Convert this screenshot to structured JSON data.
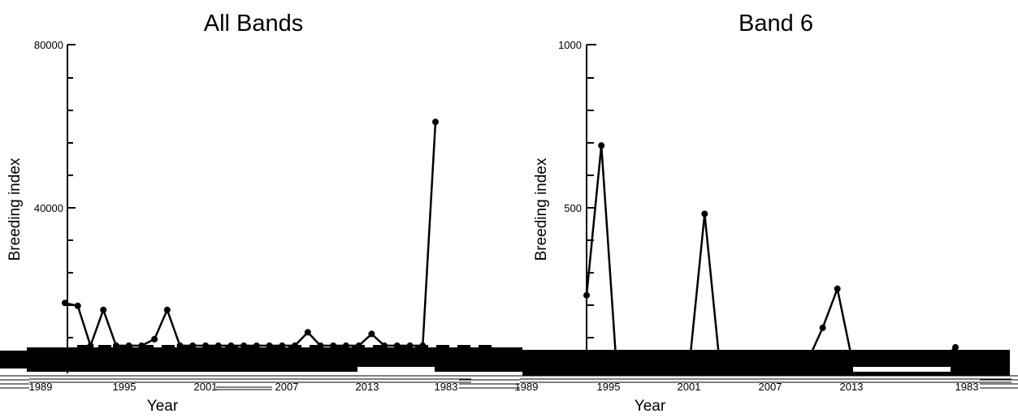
{
  "chart_data": [
    {
      "type": "line",
      "title": "All Bands",
      "xlabel": "Year",
      "ylabel": "Breeding index",
      "ylim": [
        0,
        80000
      ],
      "y_ticks": [
        "80000",
        "40000"
      ],
      "x_ticks": [
        "1989",
        "1995",
        "2001",
        "2007",
        "2013",
        "1983"
      ],
      "series": [
        {
          "x": [
            1989,
            1990,
            1991,
            1992,
            1993,
            1994,
            1995,
            1996,
            1997,
            1998,
            1999,
            2000,
            2001,
            2002,
            2003,
            2004,
            2005,
            2006,
            2007,
            2008,
            2009,
            2010,
            2011,
            2012,
            2013,
            2014,
            2015,
            2016,
            2017,
            2018
          ],
          "values": [
            16500,
            15800,
            6000,
            14800,
            6000,
            6000,
            6000,
            7600,
            14800,
            6000,
            6000,
            6000,
            6000,
            6000,
            6000,
            6000,
            6000,
            6000,
            6000,
            9300,
            6000,
            6000,
            6000,
            6000,
            8900,
            6000,
            6000,
            6000,
            6000,
            61000
          ]
        }
      ]
    },
    {
      "type": "line",
      "title": "Band 6",
      "xlabel": "Year",
      "ylabel": "Breeding index",
      "ylim": [
        0,
        1000
      ],
      "y_ticks": [
        "1000",
        "500"
      ],
      "x_ticks": [
        "1989",
        "1995",
        "2001",
        "2007",
        "2013",
        "1983"
      ],
      "series": [
        {
          "x": [
            1993,
            1994,
            1995,
            1996,
            1997,
            1998,
            1999,
            2000,
            2001,
            2002,
            2003,
            2004,
            2005,
            2006,
            2007,
            2008,
            2009,
            2010,
            2011,
            2012,
            2013,
            2014,
            2015,
            2016,
            2017,
            2018
          ],
          "values": [
            230,
            690,
            30,
            30,
            30,
            30,
            30,
            30,
            480,
            30,
            30,
            30,
            30,
            30,
            30,
            30,
            130,
            250,
            30,
            30,
            30,
            30,
            30,
            30,
            30,
            70
          ]
        }
      ]
    }
  ]
}
